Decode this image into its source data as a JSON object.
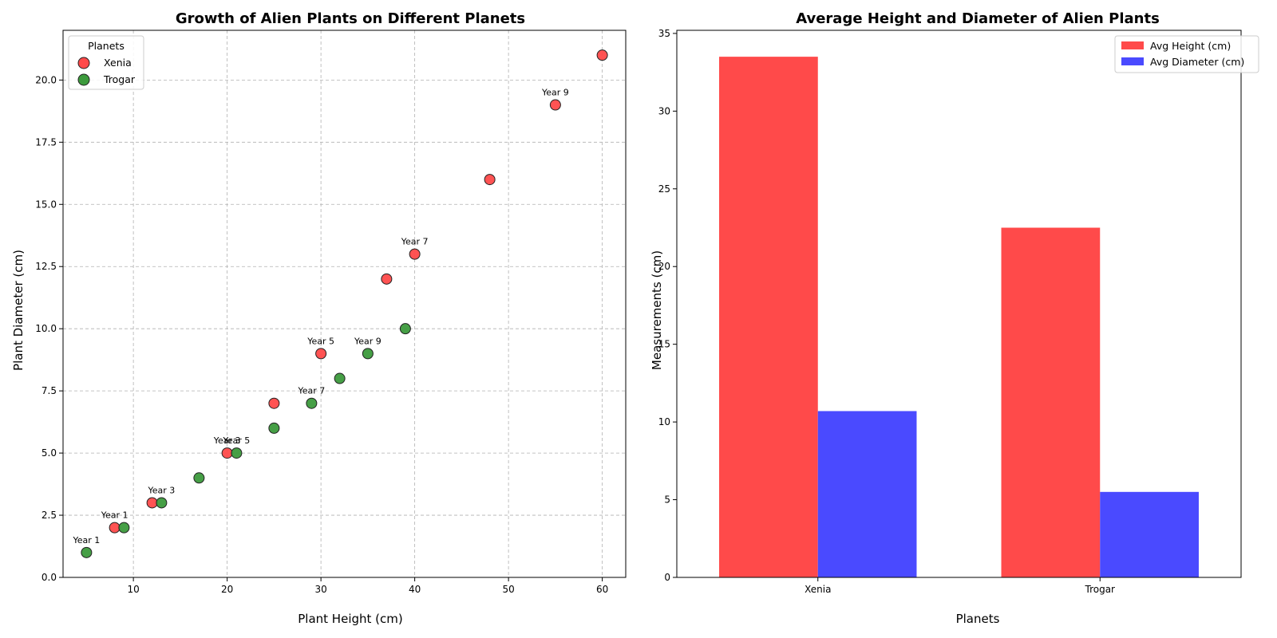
{
  "chart_data": [
    {
      "type": "scatter",
      "title": "Growth of Alien Plants on Different Planets",
      "xlabel": "Plant Height (cm)",
      "ylabel": "Plant Diameter (cm)",
      "xlim": [
        2.5,
        62.5
      ],
      "ylim": [
        0,
        22
      ],
      "xticks": [
        10,
        20,
        30,
        40,
        50,
        60
      ],
      "xtick_labels": [
        "10",
        "20",
        "30",
        "40",
        "50",
        "60"
      ],
      "yticks": [
        0,
        2.5,
        5,
        7.5,
        10,
        12.5,
        15,
        17.5,
        20
      ],
      "ytick_labels": [
        "0.0",
        "2.5",
        "5.0",
        "7.5",
        "10.0",
        "12.5",
        "15.0",
        "17.5",
        "20.0"
      ],
      "grid": true,
      "legend_title": "Planets",
      "legend_position": "top-left",
      "series": [
        {
          "name": "Xenia",
          "color": "#ff4a4a",
          "x": [
            8,
            12,
            20,
            25,
            30,
            37,
            40,
            48,
            55,
            60
          ],
          "y": [
            2,
            3,
            5,
            7,
            9,
            12,
            13,
            16,
            19,
            21
          ]
        },
        {
          "name": "Trogar",
          "color": "#3c9a3c",
          "x": [
            5,
            9,
            13,
            17,
            21,
            25,
            29,
            32,
            35,
            39
          ],
          "y": [
            1,
            2,
            3,
            4,
            5,
            6,
            7,
            8,
            9,
            10
          ]
        }
      ],
      "annotations": [
        {
          "text": "Year 1",
          "x": 8,
          "y": 2
        },
        {
          "text": "Year 3",
          "x": 20,
          "y": 5
        },
        {
          "text": "Year 5",
          "x": 30,
          "y": 9
        },
        {
          "text": "Year 7",
          "x": 40,
          "y": 13
        },
        {
          "text": "Year 9",
          "x": 55,
          "y": 19
        },
        {
          "text": "Year 1",
          "x": 5,
          "y": 1
        },
        {
          "text": "Year 3",
          "x": 13,
          "y": 3
        },
        {
          "text": "Year 5",
          "x": 21,
          "y": 5
        },
        {
          "text": "Year 7",
          "x": 29,
          "y": 7
        },
        {
          "text": "Year 9",
          "x": 35,
          "y": 9
        }
      ]
    },
    {
      "type": "bar",
      "title": "Average Height and Diameter of Alien Plants",
      "xlabel": "Planets",
      "ylabel": "Measurements (cm)",
      "categories": [
        "Xenia",
        "Trogar"
      ],
      "ylim": [
        0,
        35.2
      ],
      "yticks": [
        0,
        5,
        10,
        15,
        20,
        25,
        30,
        35
      ],
      "ytick_labels": [
        "0",
        "5",
        "10",
        "15",
        "20",
        "25",
        "30",
        "35"
      ],
      "grid": false,
      "legend_position": "top-right",
      "series": [
        {
          "name": "Avg Height (cm)",
          "color": "#ff4a4a",
          "values": [
            33.5,
            22.5
          ]
        },
        {
          "name": "Avg Diameter (cm)",
          "color": "#4a4aff",
          "values": [
            10.7,
            5.5
          ]
        }
      ]
    }
  ]
}
